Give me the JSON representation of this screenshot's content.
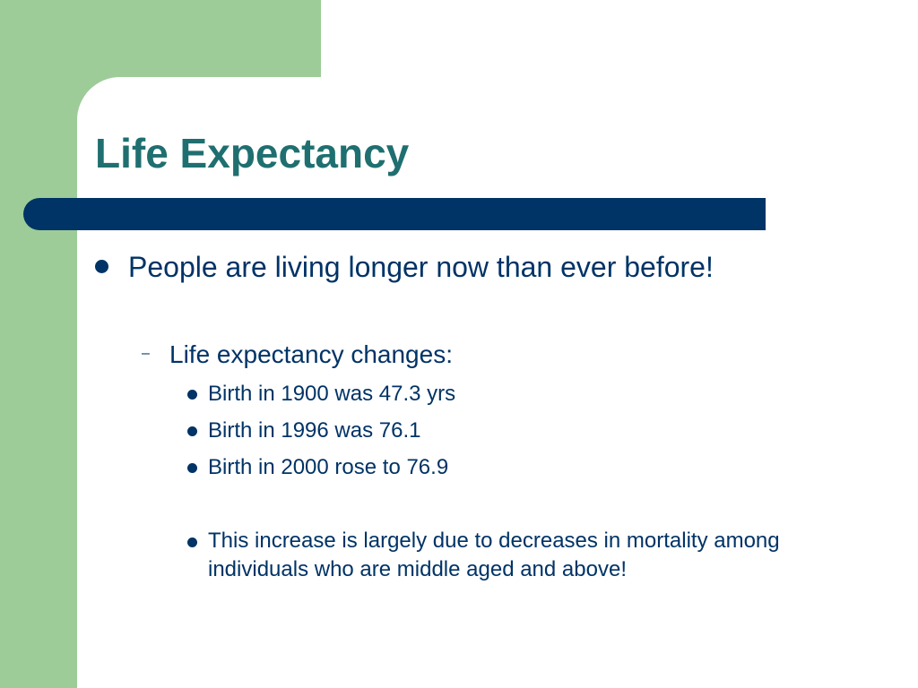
{
  "slide": {
    "title": "Life Expectancy",
    "bullet_1": "People are living longer now than ever before!",
    "sub_bullet_1": "Life expectancy changes:",
    "items": [
      "Birth in 1900 was 47.3 yrs",
      "Birth in 1996 was 76.1",
      "Birth in 2000 rose to 76.9",
      "This increase is largely due to decreases in mortality among individuals who are middle aged and above!"
    ],
    "dash_glyph": "–"
  },
  "colors": {
    "green_band": "#9dcc98",
    "title": "#1f6f70",
    "bar": "#003366",
    "text": "#003366"
  }
}
